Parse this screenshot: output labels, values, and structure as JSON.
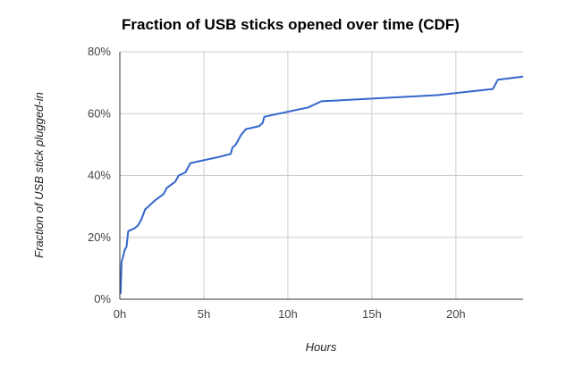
{
  "chart_data": {
    "type": "line",
    "title": "Fraction of USB sticks opened over time (CDF)",
    "xlabel": "Hours",
    "ylabel": "Fraction of USB stick plugged-in",
    "xlim": [
      0,
      24
    ],
    "ylim": [
      0,
      80
    ],
    "x_ticks": [
      0,
      5,
      10,
      15,
      20
    ],
    "x_tick_labels": [
      "0h",
      "5h",
      "10h",
      "15h",
      "20h"
    ],
    "y_ticks": [
      0,
      20,
      40,
      60,
      80
    ],
    "y_tick_labels": [
      "0%",
      "20%",
      "40%",
      "60%",
      "80%"
    ],
    "grid": true,
    "legend": "none",
    "line_color": "#3366cc",
    "series": [
      {
        "x": [
          0.0,
          0.05,
          0.1,
          0.2,
          0.3,
          0.4,
          0.5,
          0.9,
          1.1,
          1.3,
          1.5,
          1.7,
          2.1,
          2.6,
          2.8,
          3.3,
          3.4,
          3.5,
          3.9,
          4.2,
          5.9,
          6.6,
          6.7,
          6.9,
          7.2,
          7.5,
          8.3,
          8.5,
          8.6,
          11.2,
          12.0,
          18.9,
          22.2,
          22.5,
          24.0
        ],
        "y": [
          2,
          2,
          12,
          14,
          16,
          17,
          22,
          23,
          24,
          26,
          29,
          30,
          32,
          34,
          36,
          38,
          39,
          40,
          41,
          44,
          46,
          47,
          49,
          50,
          53,
          55,
          56,
          57,
          59,
          62,
          64,
          66,
          68,
          71,
          72
        ]
      }
    ]
  }
}
